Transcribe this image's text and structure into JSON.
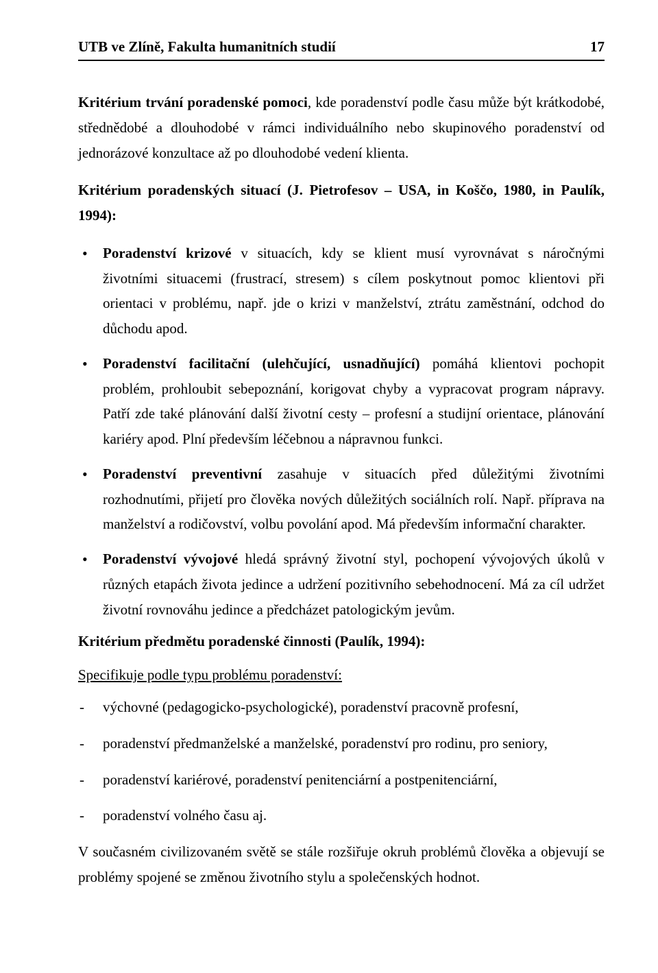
{
  "header": {
    "left": "UTB ve Zlíně, Fakulta humanitních studií",
    "page_number": "17"
  },
  "intro": {
    "label_bold": "Kritérium trvání poradenské pomoci",
    "rest": ", kde poradenství podle času může být krátkodobé, střednědobé a dlouhodobé v rámci individuálního nebo skupinového poradenství od jednorázové konzultace až po dlouhodobé vedení klienta."
  },
  "criteria_head": "Kritérium poradenských situací (J. Pietrofesov – USA, in Koščo, 1980, in Paulík, 1994):",
  "bullets": [
    {
      "bold": "Poradenství krizové",
      "text": " v situacích, kdy se klient musí vyrovnávat s náročnými životními situacemi (frustrací, stresem) s cílem poskytnout pomoc klientovi při orientaci v problému, např. jde o krizi v manželství, ztrátu zaměstnání, odchod do důchodu apod."
    },
    {
      "bold": "Poradenství facilitační (ulehčující, usnadňující)",
      "text": " pomáhá klientovi pochopit problém, prohloubit sebepoznání, korigovat chyby a vypracovat program nápravy. Patří zde také plánování další životní cesty – profesní a studijní orientace, plánování kariéry apod. Plní především léčebnou a nápravnou funkci."
    },
    {
      "bold": "Poradenství preventivní",
      "text": " zasahuje v situacích před důležitými životními rozhodnutími, přijetí pro člověka nových důležitých sociálních rolí. Např. příprava na manželství a rodičovství, volbu povolání apod. Má především informační charakter."
    },
    {
      "bold": "Poradenství vývojové",
      "text": " hledá správný životní styl, pochopení vývojových úkolů v různých etapách života jedince a udržení pozitivního sebehodnocení. Má za cíl udržet životní rovnováhu jedince a předcházet patologickým jevům."
    }
  ],
  "subject_head": "Kritérium předmětu poradenské činnosti (Paulík, 1994):",
  "specifies": "Specifikuje podle typu problému poradenství:",
  "dashes": [
    "výchovné (pedagogicko-psychologické), poradenství pracovně profesní,",
    " poradenství předmanželské a manželské, poradenství pro rodinu, pro seniory,",
    "poradenství kariérové, poradenství penitenciární a postpenitenciární,",
    "poradenství volného času aj."
  ],
  "closing": "V současném civilizovaném světě se stále rozšiřuje okruh problémů člověka a objevují se problémy spojené se změnou životního stylu a společenských hodnot."
}
